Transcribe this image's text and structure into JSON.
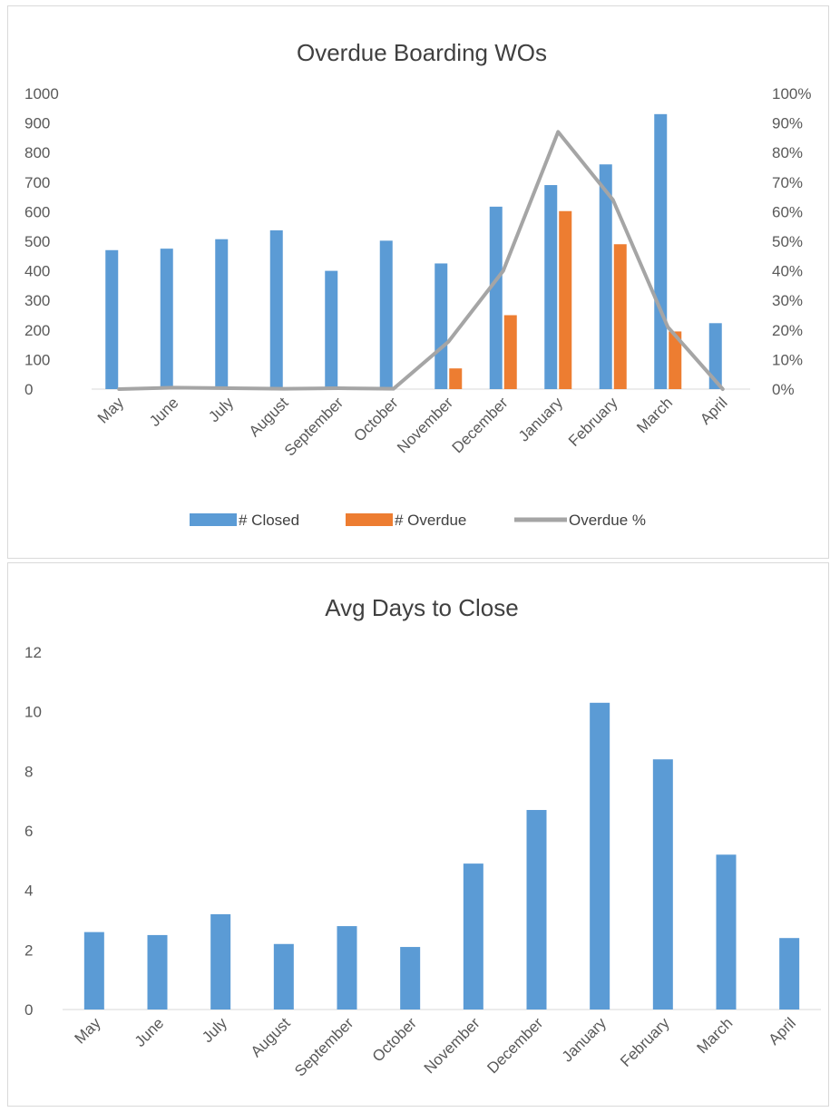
{
  "colors": {
    "closed": "#5b9bd5",
    "overdue": "#ed7d31",
    "overdue_pct": "#a5a5a5",
    "axis": "#d9d9d9"
  },
  "chart_data": [
    {
      "type": "bar",
      "title": "Overdue Boarding WOs",
      "categories": [
        "May",
        "June",
        "July",
        "August",
        "September",
        "October",
        "November",
        "December",
        "January",
        "February",
        "March",
        "April"
      ],
      "series": [
        {
          "name": "# Closed",
          "type": "bar",
          "axis": "left",
          "values": [
            470,
            475,
            507,
            537,
            400,
            502,
            425,
            617,
            690,
            760,
            930,
            223
          ]
        },
        {
          "name": "# Overdue",
          "type": "bar",
          "axis": "left",
          "values": [
            0,
            0,
            0,
            0,
            0,
            0,
            70,
            250,
            602,
            490,
            195,
            0
          ]
        },
        {
          "name": "Overdue %",
          "type": "line",
          "axis": "right",
          "values": [
            0,
            0.005,
            0.003,
            0.001,
            0.003,
            0.001,
            0.16,
            0.4,
            0.87,
            0.64,
            0.21,
            0
          ]
        }
      ],
      "yticks": [
        "0",
        "100",
        "200",
        "300",
        "400",
        "500",
        "600",
        "700",
        "800",
        "900",
        "1000"
      ],
      "y2ticks": [
        "0%",
        "10%",
        "20%",
        "30%",
        "40%",
        "50%",
        "60%",
        "70%",
        "80%",
        "90%",
        "100%"
      ],
      "ylim": [
        0,
        1000
      ],
      "y2lim": [
        0,
        1
      ],
      "legend_position": "bottom",
      "grid": false
    },
    {
      "type": "bar",
      "title": "Avg Days to Close",
      "categories": [
        "May",
        "June",
        "July",
        "August",
        "September",
        "October",
        "November",
        "December",
        "January",
        "February",
        "March",
        "April"
      ],
      "values": [
        2.6,
        2.5,
        3.2,
        2.2,
        2.8,
        2.1,
        4.9,
        6.7,
        10.3,
        8.4,
        5.2,
        2.4
      ],
      "yticks": [
        "0",
        "2",
        "4",
        "6",
        "8",
        "10",
        "12"
      ],
      "ylim": [
        0,
        12
      ],
      "grid": false
    }
  ]
}
